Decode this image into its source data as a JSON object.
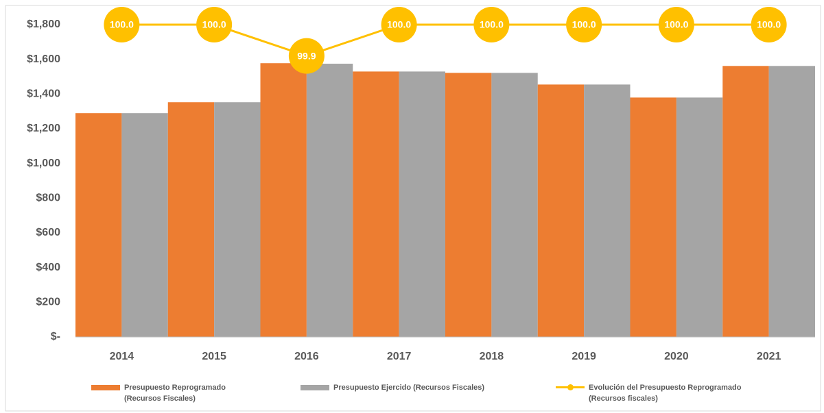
{
  "chart_data": {
    "type": "bar_line",
    "categories": [
      "2014",
      "2015",
      "2016",
      "2017",
      "2018",
      "2019",
      "2020",
      "2021"
    ],
    "series": [
      {
        "name": "Presupuesto Reprogramado (Recursos Fiscales)",
        "type": "bar",
        "color": "#ED7D31",
        "values": [
          1290,
          1353,
          1578,
          1530,
          1522,
          1455,
          1380,
          1562
        ]
      },
      {
        "name": "Presupuesto Ejercido (Recursos Fiscales)",
        "type": "bar",
        "color": "#A5A5A5",
        "values": [
          1290,
          1353,
          1575,
          1530,
          1522,
          1455,
          1380,
          1562
        ]
      },
      {
        "name": "Evolución del Presupuesto Reprogramado (Recursos fiscales)",
        "type": "line",
        "color": "#FFC000",
        "axis": "y2",
        "values": [
          100,
          100,
          99.9,
          100,
          100,
          100,
          100,
          100
        ],
        "value_labels": [
          "100.0",
          "100.0",
          "99.9",
          "100.0",
          "100.0",
          "100.0",
          "100.0",
          "100.0"
        ]
      }
    ],
    "ylim": [
      0,
      1800
    ],
    "yticks": [
      {
        "value": 0,
        "label": "$-"
      },
      {
        "value": 200,
        "label": "$200"
      },
      {
        "value": 400,
        "label": "$400"
      },
      {
        "value": 600,
        "label": "$600"
      },
      {
        "value": 800,
        "label": "$800"
      },
      {
        "value": 1000,
        "label": "$1,000"
      },
      {
        "value": 1200,
        "label": "$1,200"
      },
      {
        "value": 1400,
        "label": "$1,400"
      },
      {
        "value": 1600,
        "label": "$1,600"
      },
      {
        "value": 1800,
        "label": "$1,800"
      }
    ],
    "y2lim": [
      99,
      100
    ],
    "legend": "bottom"
  }
}
